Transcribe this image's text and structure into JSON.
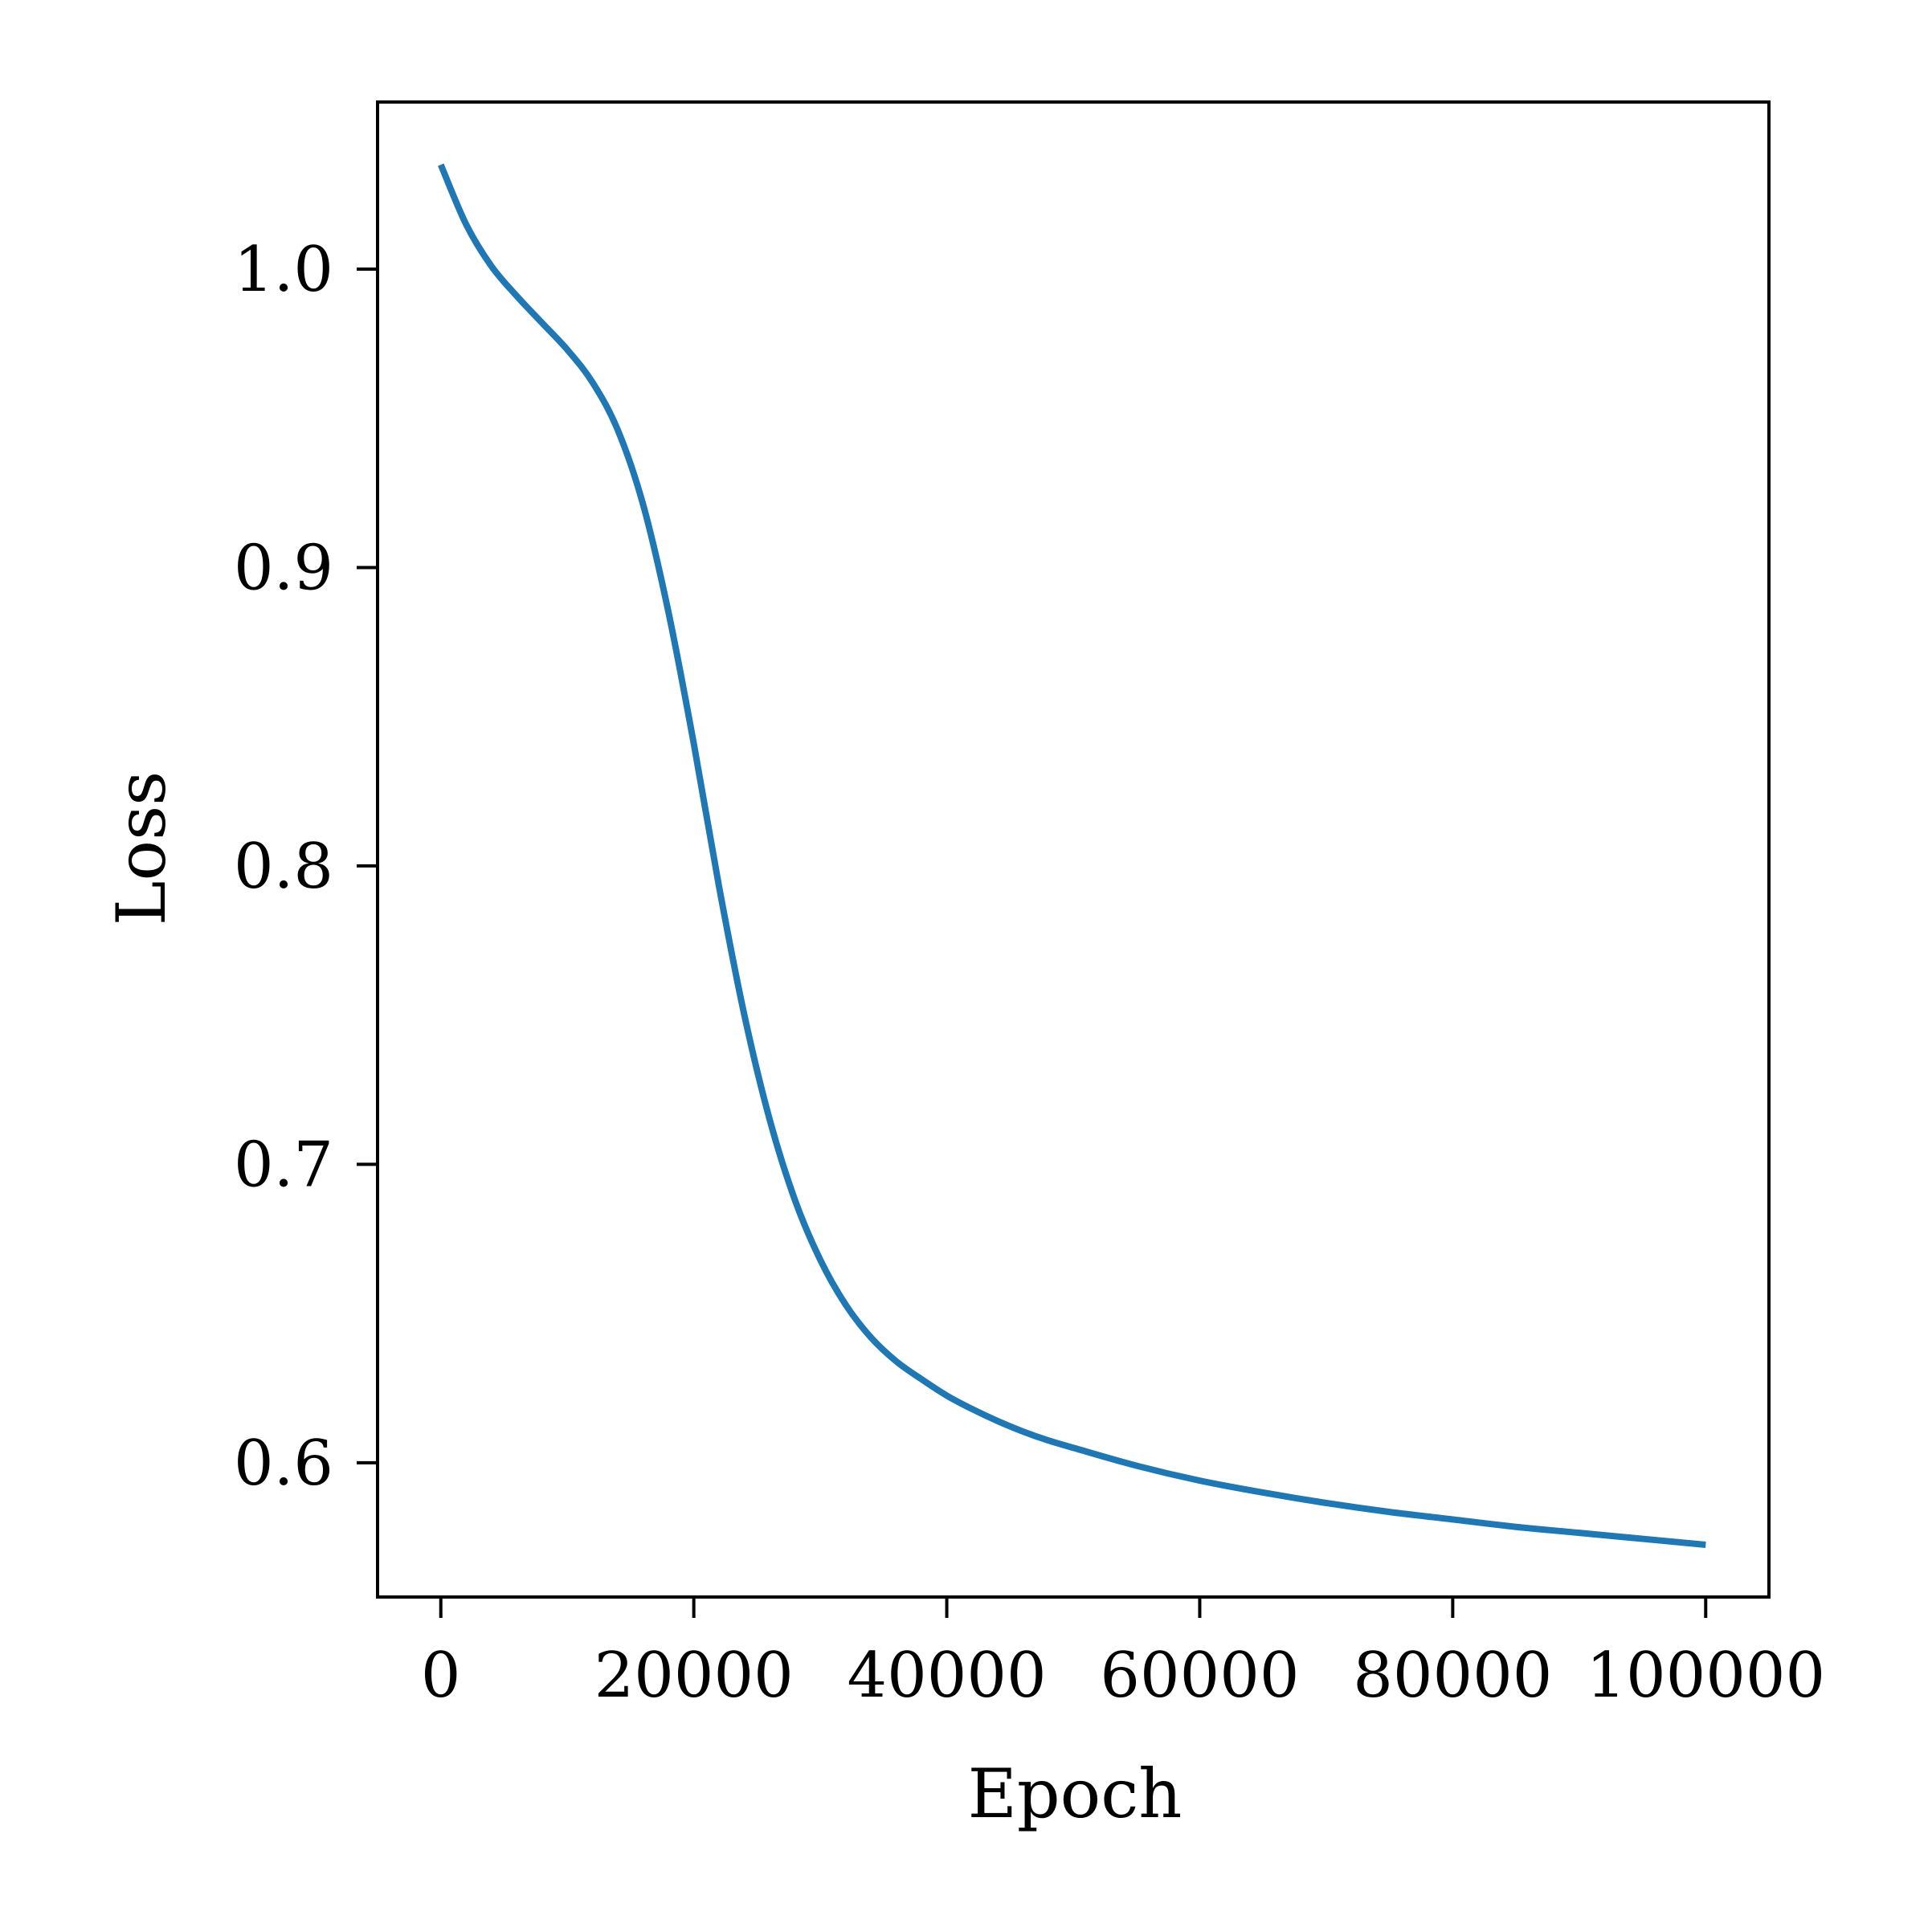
{
  "chart_data": {
    "type": "line",
    "title": "",
    "xlabel": "Epoch",
    "ylabel": "Loss",
    "xlim": [
      -5000,
      105000
    ],
    "ylim": [
      0.555,
      1.056
    ],
    "xticks": [
      0,
      20000,
      40000,
      60000,
      80000,
      100000
    ],
    "xtick_labels": [
      "0",
      "20000",
      "40000",
      "60000",
      "80000",
      "100000"
    ],
    "yticks": [
      0.6,
      0.7,
      0.8,
      0.9,
      1.0
    ],
    "ytick_labels": [
      "0.6",
      "0.7",
      "0.8",
      "0.9",
      "1.0"
    ],
    "grid": false,
    "legend": "none",
    "colors": {
      "line": "#1f77b4",
      "axes": "#000000"
    },
    "series": [
      {
        "x": [
          0,
          2000,
          4000,
          6000,
          8000,
          10000,
          12000,
          14000,
          16000,
          18000,
          20000,
          22000,
          24000,
          26000,
          28000,
          30000,
          32000,
          34000,
          36000,
          38000,
          40000,
          42000,
          44000,
          46000,
          48000,
          50000,
          55000,
          60000,
          65000,
          70000,
          75000,
          80000,
          85000,
          90000,
          95000,
          100000
        ],
        "y": [
          1.035,
          1.015,
          1.001,
          0.991,
          0.982,
          0.973,
          0.962,
          0.946,
          0.921,
          0.885,
          0.841,
          0.793,
          0.75,
          0.715,
          0.688,
          0.668,
          0.653,
          0.642,
          0.634,
          0.628,
          0.6225,
          0.618,
          0.614,
          0.6105,
          0.6075,
          0.605,
          0.599,
          0.594,
          0.59,
          0.5865,
          0.5835,
          0.581,
          0.5785,
          0.5765,
          0.5745,
          0.5725
        ]
      }
    ]
  }
}
